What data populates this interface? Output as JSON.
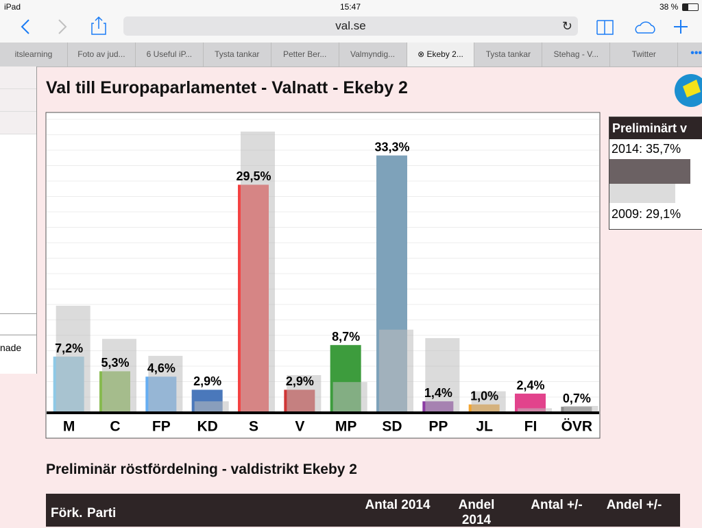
{
  "status_bar": {
    "device": "iPad",
    "time": "15:47",
    "battery": "38 %"
  },
  "browser": {
    "url": "val.se",
    "tabs": [
      "itslearning",
      "Foto av jud...",
      "6 Useful iP...",
      "Tysta tankar",
      "Petter Ber...",
      "Valmyndig...",
      "Ekeby 2...",
      "Tysta tankar",
      "Stehag - V...",
      "Twitter"
    ],
    "active_tab": 6
  },
  "sidebar": {
    "text": "nade"
  },
  "turnout": {
    "title": "Preliminärt v",
    "current": "2014: 35,7%",
    "previous": "2009: 29,1%"
  },
  "chart_data": {
    "type": "bar",
    "title": "Val till Europaparlamentet - Valnatt - Ekeby 2",
    "categories": [
      "M",
      "C",
      "FP",
      "KD",
      "S",
      "V",
      "MP",
      "SD",
      "PP",
      "JL",
      "FI",
      "ÖVR"
    ],
    "ylim": [
      0,
      38.7
    ],
    "series": [
      {
        "color": "#bdbdbd",
        "values": [
          13.8,
          9.5,
          7.3,
          1.4,
          36.4,
          4.8,
          3.9,
          10.7,
          9.6,
          2.7,
          0.5,
          0.8
        ]
      },
      {
        "colors": [
          "#8ec9e6",
          "#88ba50",
          "#66aef2",
          "#4a78bb",
          "#f44242",
          "#cf3535",
          "#3d9c3d",
          "#7ea2ba",
          "#8b3ba3",
          "#f2a531",
          "#e2438c",
          "#8c8c8c"
        ],
        "values": [
          7.2,
          5.3,
          4.6,
          2.9,
          29.5,
          2.9,
          8.7,
          33.3,
          1.4,
          1.0,
          2.4,
          0.7
        ],
        "value_labels": [
          "7,2%",
          "5,3%",
          "4,6%",
          "2,9%",
          "29,5%",
          "2,9%",
          "8,7%",
          "33,3%",
          "1,4%",
          "1,0%",
          "2,4%",
          "0,7%"
        ]
      }
    ]
  },
  "table": {
    "title": "Preliminär röstfördelning - valdistrikt Ekeby 2",
    "headers": [
      "Förk.",
      "Parti",
      "Antal 2014",
      "Andel 2014",
      "Antal +/-",
      "Andel +/-"
    ]
  }
}
